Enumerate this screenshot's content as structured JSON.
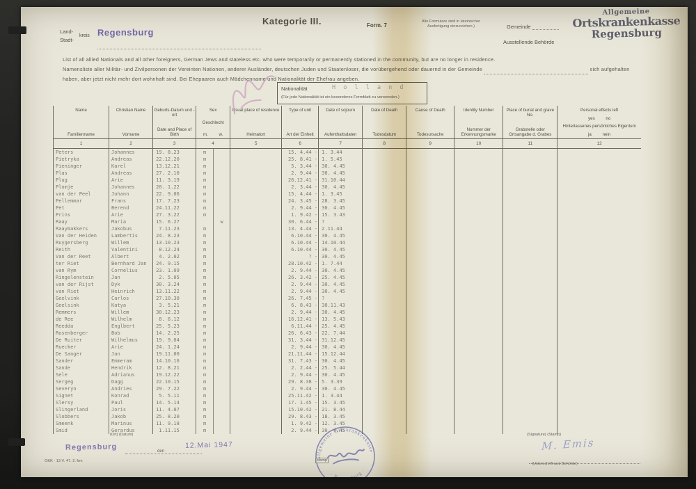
{
  "colors": {
    "stamp_purple": "#6f66a8",
    "paper": "#e9e7da",
    "round_stamp_blue": "#6767a3"
  },
  "header": {
    "category": "Kategorie III.",
    "form_no": "Form. 7",
    "form_note1": "Alle Formulare sind in lateinischer",
    "form_note2": "Ausfertigung einzureichen.)",
    "gemeinde_label": "Gemeinde",
    "behoerde_label": "Ausstellende Behörde",
    "stamp": {
      "line1": "Allgemeine",
      "line2": "Ortskrankenkasse",
      "line3": "Regensburg"
    },
    "land_label": "Land-",
    "stadt_label": "Stadt-",
    "kreis_label": "kreis",
    "kreis_value": "Regensburg"
  },
  "intro": {
    "en": "List of all allied Nationals and all other foreigners, German Jews and stateless etc. who were temporarily or permanently stationed in the community, but are no longer in residence.",
    "de_before": "Namensliste aller Militär- und Zivilpersonen der Vereinten Nationen, anderer Ausländer, deutschen Juden und Staatenloser, die vorübergehend oder dauernd in der Gemeinde",
    "de_after": "sich aufgehalten",
    "de_line3": "haben, aber jetzt nicht mehr dort wohnhaft sind. Bei Ehepaaren auch Mädchenname und Nationalität der Ehefrau angeben."
  },
  "natbox": {
    "label": "Nationalität",
    "value": "H o l l a n d",
    "note": "(Für jede Nationalität ist ein besonderes Formblatt zu verwenden.)"
  },
  "table": {
    "columns": [
      {
        "top": "Name",
        "bottom": "Familienname",
        "num": "1"
      },
      {
        "top": "Christian Name",
        "bottom": "Vorname",
        "num": "2"
      },
      {
        "top": "Geburts-Datum und -ort",
        "bottom": "Date and Place of Birth",
        "num": "3"
      },
      {
        "top": "Sex",
        "bottom": "Geschlecht",
        "sub_bottom": "m. w.",
        "num": "4"
      },
      {
        "top": "Usual place of residence",
        "bottom": "Heimatort",
        "num": "5"
      },
      {
        "top": "Type of unit",
        "bottom": "Art der Einheit",
        "num": "6"
      },
      {
        "top": "Date of sojourn",
        "bottom": "Aufenthaltsdaten",
        "num": "7"
      },
      {
        "top": "Date of Death",
        "bottom": "Todesdatum",
        "num": "8"
      },
      {
        "top": "Cause of Death",
        "bottom": "Todesursache",
        "num": "9"
      },
      {
        "top": "Identity Number",
        "bottom": "Nummer der Erkennungsmarke",
        "num": "10"
      },
      {
        "top": "Place of burial and grave No.",
        "bottom": "Grabstelle oder Ortsangabe d. Grabes",
        "num": "11"
      },
      {
        "top": "Personal effects left",
        "sub_top": "yes no",
        "bottom": "Hinterlassenes persönliches Eigentum",
        "sub_bottom": "ja nein",
        "num": "12"
      }
    ],
    "rows": [
      {
        "name": "Peters",
        "first": "Johannes",
        "birth": "19. 8.23",
        "sex": "m",
        "from": "15. 4.44",
        "to": "1. 3.44"
      },
      {
        "name": "Pietryka",
        "first": "Andreas",
        "birth": "22.12.20",
        "sex": "m",
        "from": "25. 8.41",
        "to": "1. 5.45"
      },
      {
        "name": "Pieninger",
        "first": "Karel",
        "birth": "13.12.21",
        "sex": "m",
        "from": "5. 3.44",
        "to": "30. 4.45"
      },
      {
        "name": "Plas",
        "first": "Andreas",
        "birth": "27. 2.10",
        "sex": "m",
        "from": "2. 9.44",
        "to": "30. 4.45"
      },
      {
        "name": "Plug",
        "first": "Arie",
        "birth": "11. 3.19",
        "sex": "m",
        "from": "26.12.41",
        "to": "31.10.44"
      },
      {
        "name": "Plomje",
        "first": "Johannes",
        "birth": "20. 1.22",
        "sex": "m",
        "from": "2. 3.44",
        "to": "30. 4.45"
      },
      {
        "name": "van der Peel",
        "first": "Johann",
        "birth": "22. 9.06",
        "sex": "m",
        "from": "15. 4.44",
        "to": "1. 3.45"
      },
      {
        "name": "Pellemmar",
        "first": "Frans",
        "birth": "17. 7.23",
        "sex": "m",
        "from": "24. 3.45",
        "to": "28. 3.45"
      },
      {
        "name": "Pet",
        "first": "Berend",
        "birth": "24.11.22",
        "sex": "m",
        "from": "2. 9.44",
        "to": "30. 4.45"
      },
      {
        "name": "Prins",
        "first": "Arie",
        "birth": "27. 3.22",
        "sex": "m",
        "from": "1. 9.42",
        "to": "15. 3.43"
      },
      {
        "name": "Raay",
        "first": "Maria",
        "birth": "15. 6.27",
        "sex": "w",
        "from": "30. 6.44",
        "to": "?"
      },
      {
        "name": "Raaymakkers",
        "first": "Jakobus",
        "birth": " 7.11.23",
        "sex": "m",
        "from": "13. 4.44",
        "to": "2.11.44"
      },
      {
        "name": "Van der Heiden",
        "first": "Lambertis",
        "birth": "24. 8.23",
        "sex": "m",
        "from": "6.10.44",
        "to": "30. 4.45"
      },
      {
        "name": "Ruygersberg",
        "first": "Willem",
        "birth": "13.10.23",
        "sex": "m",
        "from": "6.10.44",
        "to": "14.10.44"
      },
      {
        "name": "Reith",
        "first": "Valentini",
        "birth": " 8.12.24",
        "sex": "m",
        "from": "6.10.44",
        "to": "30. 4.45"
      },
      {
        "name": "Van der Reet",
        "first": "Albert",
        "birth": " 4. 2.02",
        "sex": "m",
        "from": "?",
        "to": "30. 4.45"
      },
      {
        "name": "ter Riet",
        "first": "Bernhard Jan",
        "birth": "24. 9.15",
        "sex": "m",
        "from": "28.10.42",
        "to": "1. 7.44"
      },
      {
        "name": "van Rym",
        "first": "Cornelius",
        "birth": "23. 1.09",
        "sex": "m",
        "from": "2. 9.44",
        "to": "30. 4.45"
      },
      {
        "name": "Ringelenstein",
        "first": "Jan",
        "birth": " 2. 5.05",
        "sex": "m",
        "from": "26. 3.42",
        "to": "25. 4.45"
      },
      {
        "name": "van der Rijst",
        "first": "Dyk",
        "birth": "30. 3.24",
        "sex": "m",
        "from": "2. 9.44",
        "to": "30. 4.45"
      },
      {
        "name": "van Riet",
        "first": "Heinrich",
        "birth": "13.11.22",
        "sex": "m",
        "from": "2. 9.44",
        "to": "30. 4.45"
      },
      {
        "name": "Geelvink",
        "first": "Carlos",
        "birth": "27.10.30",
        "sex": "m",
        "from": "26. 7.45",
        "to": "?"
      },
      {
        "name": "Geelsink",
        "first": "Katya",
        "birth": " 3. 5.21",
        "sex": "m",
        "from": "6. 8.43",
        "to": "30.11.43"
      },
      {
        "name": "Remmers",
        "first": "Willem",
        "birth": "30.12.23",
        "sex": "m",
        "from": "2. 9.44",
        "to": "30. 4.45"
      },
      {
        "name": "de Ree",
        "first": "Wilhelm",
        "birth": " 8. 6.12",
        "sex": "m",
        "from": "16.12.41",
        "to": "13. 5.43"
      },
      {
        "name": "Reedda",
        "first": "Englbert",
        "birth": "25. 5.23",
        "sex": "m",
        "from": "6.11.44",
        "to": "25. 4.45"
      },
      {
        "name": "Rosenberger",
        "first": "Bob",
        "birth": "14. 2.25",
        "sex": "m",
        "from": "26. 6.43",
        "to": "22. 7.44"
      },
      {
        "name": "De Ruiter",
        "first": "Wilhelmus",
        "birth": "19. 9.04",
        "sex": "m",
        "from": "31. 3.44",
        "to": "31.12.45"
      },
      {
        "name": "Ruecker",
        "first": "Arie",
        "birth": "24. 1.24",
        "sex": "m",
        "from": "2. 9.44",
        "to": "30. 4.45"
      },
      {
        "name": "De Sanger",
        "first": "Jan",
        "birth": "19.11.00",
        "sex": "m",
        "from": "21.11.44",
        "to": "15.12.44"
      },
      {
        "name": "Sander",
        "first": "Emmeram",
        "birth": "14.10.16",
        "sex": "m",
        "from": "31. 7.43",
        "to": "30. 4.45"
      },
      {
        "name": "Sande",
        "first": "Hendrik",
        "birth": "12. 8.21",
        "sex": "m",
        "from": "2. 2.44",
        "to": "25. 5.44"
      },
      {
        "name": "Sele",
        "first": "Adrianus",
        "birth": "19.12.22",
        "sex": "m",
        "from": "2. 9.44",
        "to": "30. 4.45"
      },
      {
        "name": "Sergeg",
        "first": "Dagg",
        "birth": "22.10.15",
        "sex": "m",
        "from": "29. 8.38",
        "to": "5. 3.39"
      },
      {
        "name": "Severyn",
        "first": "Andries",
        "birth": "29. 7.22",
        "sex": "m",
        "from": "2. 9.44",
        "to": "30. 4.45"
      },
      {
        "name": "Signet",
        "first": "Konrad",
        "birth": " 5. 5.11",
        "sex": "m",
        "from": "25.11.42",
        "to": "1. 3.44"
      },
      {
        "name": "Slersy",
        "first": "Paul",
        "birth": "14. 5.14",
        "sex": "m",
        "from": "17. 1.45",
        "to": "15. 3.45"
      },
      {
        "name": "Slingerland",
        "first": "Joris",
        "birth": "11. 4.07",
        "sex": "m",
        "from": "15.10.42",
        "to": "21. 8.44"
      },
      {
        "name": "Slobbers",
        "first": "Jakob",
        "birth": "25. 8.20",
        "sex": "m",
        "from": "29. 8.43",
        "to": "18. 3.45"
      },
      {
        "name": "Smeenk",
        "first": "Marinus",
        "birth": "11. 9.18",
        "sex": "m",
        "from": "1. 9.42",
        "to": "12. 3.45"
      },
      {
        "name": "Smid",
        "first": "Gerardus",
        "birth": " 1.11.15",
        "sex": "m",
        "from": "2. 9.44",
        "to": "30. 4.45"
      }
    ]
  },
  "footer": {
    "ort_datum_label": "(Ort)   (Datum)",
    "place": "Regensburg",
    "den_label": "den",
    "date": "12.Mai 1947",
    "print_ref": "OKK · 13 V. 47. 2. frm",
    "signature_label": "(Signature) (Stamp)",
    "signature": "M. Emis",
    "signature_sub": "(Unterschrift und Behörde)",
    "stamp_word": "stamp",
    "round_stamp": {
      "top": "Allgemeine Ortskrankenkasse",
      "bottom": "· Regensburg ·"
    }
  }
}
